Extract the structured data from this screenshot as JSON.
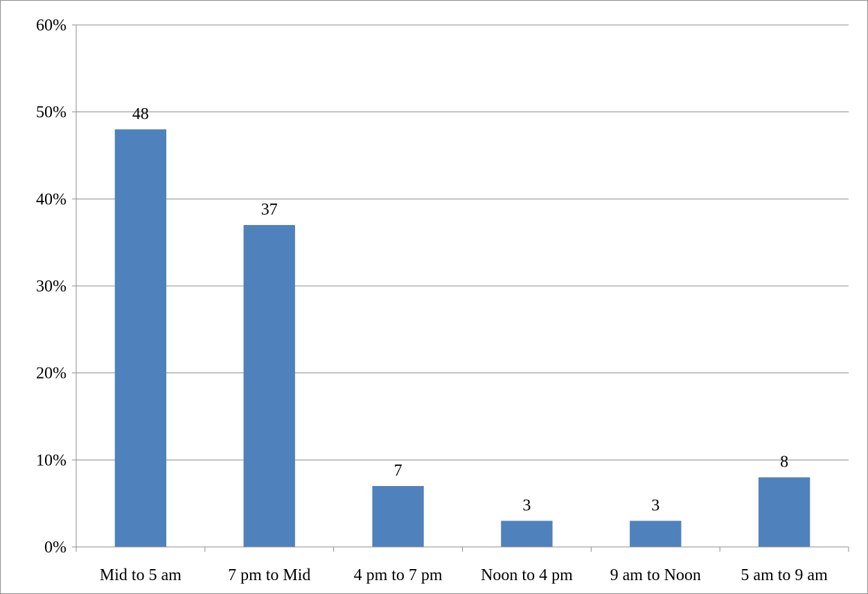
{
  "chart_data": {
    "type": "bar",
    "title": "",
    "xlabel": "",
    "ylabel": "",
    "categories": [
      "Mid to 5 am",
      "7 pm to Mid",
      "4 pm to 7 pm",
      "Noon to 4 pm",
      "9 am to Noon",
      "5 am to 9 am"
    ],
    "values": [
      48,
      37,
      7,
      3,
      3,
      8
    ],
    "data_labels": [
      "48",
      "37",
      "7",
      "3",
      "3",
      "8"
    ],
    "ylim": [
      0,
      60
    ],
    "yticks": [
      0,
      10,
      20,
      30,
      40,
      50,
      60
    ],
    "ytick_labels": [
      "0%",
      "10%",
      "20%",
      "30%",
      "40%",
      "50%",
      "60%"
    ],
    "grid": true,
    "legend": "none",
    "bar_color": "#4f81bd"
  }
}
